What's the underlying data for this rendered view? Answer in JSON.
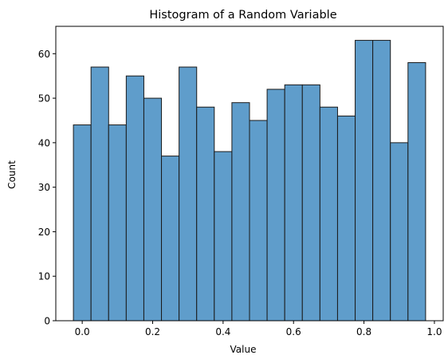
{
  "chart_data": {
    "type": "bar",
    "title": "Histogram of a Random Variable",
    "xlabel": "Value",
    "ylabel": "Count",
    "bin_start": -0.025,
    "bin_width": 0.05,
    "values": [
      44,
      57,
      44,
      55,
      50,
      37,
      57,
      48,
      38,
      49,
      45,
      52,
      53,
      53,
      48,
      46,
      63,
      63,
      40,
      58
    ],
    "xlim": [
      -0.075,
      1.025
    ],
    "ylim": [
      0,
      66.15
    ],
    "xticks": [
      0.0,
      0.2,
      0.4,
      0.6,
      0.8,
      1.0
    ],
    "xtick_labels": [
      "0.0",
      "0.2",
      "0.4",
      "0.6",
      "0.8",
      "1.0"
    ],
    "yticks": [
      0,
      10,
      20,
      30,
      40,
      50,
      60
    ],
    "ytick_labels": [
      "0",
      "10",
      "20",
      "30",
      "40",
      "50",
      "60"
    ],
    "grid": false,
    "bar_color": "#5f9dcb",
    "edge_color": "#1a1a1a"
  }
}
